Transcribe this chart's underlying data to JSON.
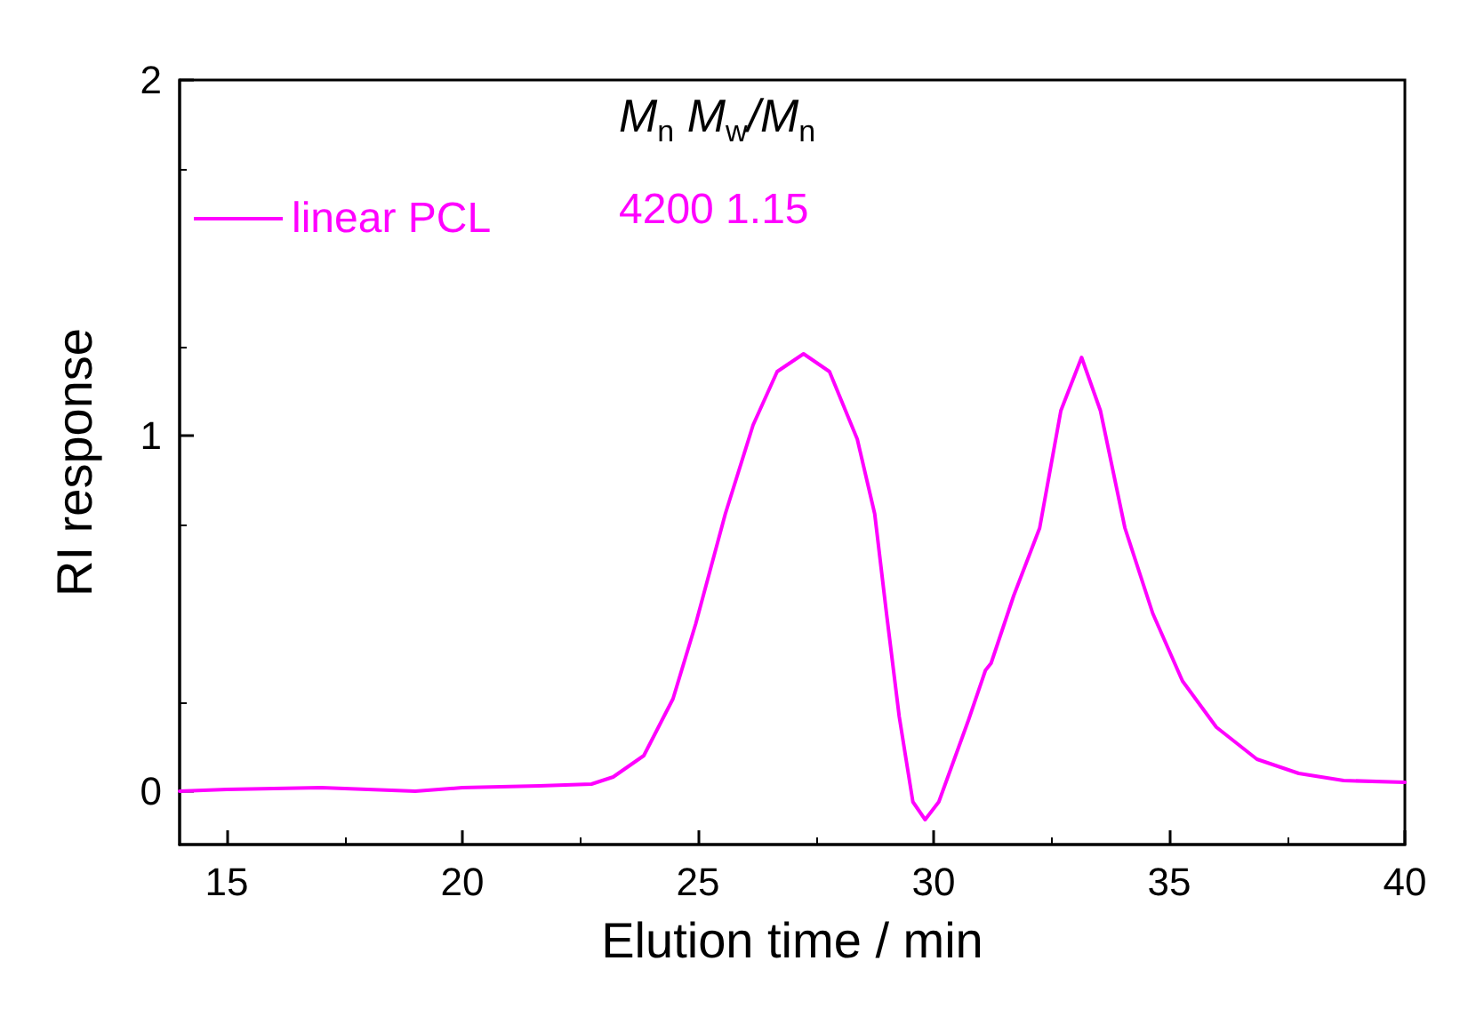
{
  "chart_data": {
    "type": "line",
    "xlabel": "Elution time / min",
    "ylabel": "RI response",
    "legend_title": "M$_{n}$ M$_{w}$/M$_{n}$",
    "annotations": [
      "4200 1.15"
    ],
    "xlim": [
      14,
      40
    ],
    "ylim": [
      -0.15,
      2
    ],
    "xticks": [
      15,
      20,
      25,
      30,
      35,
      40
    ],
    "yticks": [
      0,
      1,
      2
    ],
    "grid": false,
    "legend": "top left",
    "marker": "none",
    "line_style": "solid",
    "series": [
      {
        "name": "linear PCL",
        "color": "#ff00ff",
        "x": [
          14,
          15,
          17,
          19,
          20,
          21.63,
          22.74,
          23.2,
          23.85,
          24.47,
          24.95,
          25.58,
          26.17,
          26.68,
          27.24,
          27.79,
          28.38,
          28.75,
          29.0,
          29.27,
          29.56,
          29.82,
          30.11,
          30.74,
          31.1,
          31.22,
          31.7,
          32.25,
          32.7,
          33.14,
          33.54,
          34.06,
          34.65,
          35.28,
          36.0,
          36.86,
          37.75,
          38.7,
          40
        ],
        "values": [
          0.0,
          0.005,
          0.01,
          0.0,
          0.01,
          0.015,
          0.02,
          0.04,
          0.1,
          0.26,
          0.47,
          0.78,
          1.03,
          1.18,
          1.23,
          1.18,
          0.99,
          0.78,
          0.5,
          0.21,
          -0.03,
          -0.08,
          -0.03,
          0.2,
          0.34,
          0.36,
          0.55,
          0.74,
          1.07,
          1.22,
          1.07,
          0.74,
          0.5,
          0.31,
          0.18,
          0.09,
          0.05,
          0.03,
          0.025
        ]
      }
    ]
  }
}
